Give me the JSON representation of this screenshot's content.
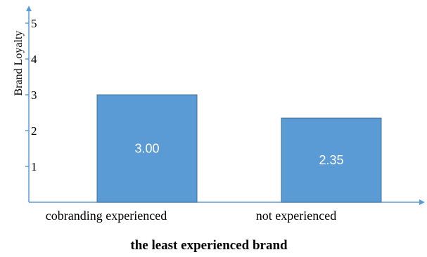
{
  "chart_data": {
    "type": "bar",
    "categories": [
      "cobranding experienced",
      "not experienced"
    ],
    "values": [
      3.0,
      2.35
    ],
    "data_labels": [
      "3.00",
      "2.35"
    ],
    "title": "",
    "xlabel": "the least experienced brand",
    "ylabel": "Brand Loyalty",
    "ylim": [
      0,
      5.6
    ],
    "yticks": [
      1,
      2,
      3,
      4,
      5
    ],
    "ytick_labels": [
      "1",
      "2",
      "3",
      "4",
      "5"
    ],
    "grid": false,
    "legend": "none",
    "bar_color": "#5b9bd5",
    "bar_edge_color": "#41719c",
    "axis_color": "#5b9bd5"
  }
}
